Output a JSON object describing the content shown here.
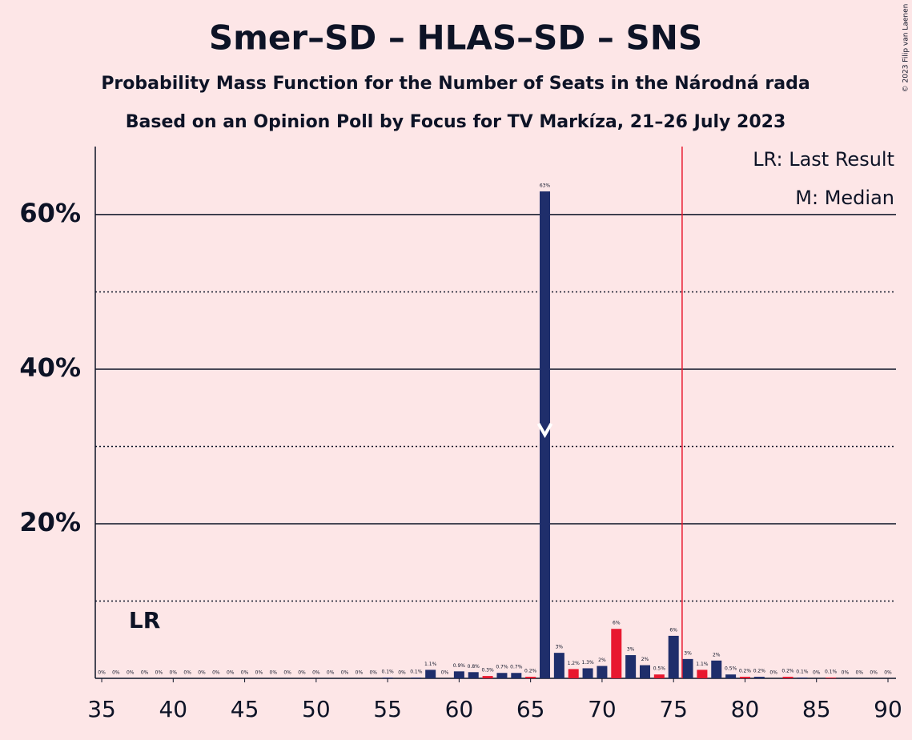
{
  "chart_data": {
    "type": "bar",
    "title": "Smer–SD – HLAS–SD – SNS",
    "subtitle": "Probability Mass Function for the Number of Seats in the Národná rada",
    "subtitle2": "Based on an Opinion Poll by Focus for TV Markíza, 21–26 July 2023",
    "copyright": "© 2023 Filip van Laenen",
    "legend": [
      "LR: Last Result",
      "M: Median"
    ],
    "last_result_label": "LR",
    "x": [
      35,
      36,
      37,
      38,
      39,
      40,
      41,
      42,
      43,
      44,
      45,
      46,
      47,
      48,
      49,
      50,
      51,
      52,
      53,
      54,
      55,
      56,
      57,
      58,
      59,
      60,
      61,
      62,
      63,
      64,
      65,
      66,
      67,
      68,
      69,
      70,
      71,
      72,
      73,
      74,
      75,
      76,
      77,
      78,
      79,
      80,
      81,
      82,
      83,
      84,
      85,
      86,
      87,
      88,
      89,
      90
    ],
    "values": [
      0,
      0,
      0,
      0,
      0,
      0,
      0,
      0,
      0,
      0,
      0,
      0,
      0,
      0,
      0,
      0,
      0,
      0,
      0,
      0,
      0.1,
      0,
      0.1,
      1.1,
      0,
      0.9,
      0.8,
      0.3,
      0.7,
      0.7,
      0.2,
      63,
      3.3,
      1.2,
      1.3,
      1.6,
      6.4,
      3.0,
      1.7,
      0.5,
      5.5,
      2.5,
      1.1,
      2.3,
      0.5,
      0.2,
      0.2,
      0,
      0.2,
      0.1,
      0,
      0.1,
      0,
      0,
      0,
      0
    ],
    "value_labels": [
      "0%",
      "0%",
      "0%",
      "0%",
      "0%",
      "0%",
      "0%",
      "0%",
      "0%",
      "0%",
      "0%",
      "0%",
      "0%",
      "0%",
      "0%",
      "0%",
      "0%",
      "0%",
      "0%",
      "0%",
      "0.1%",
      "0%",
      "0.1%",
      "1.1%",
      "0%",
      "0.9%",
      "0.8%",
      "0.3%",
      "0.7%",
      "0.7%",
      "0.2%",
      "63%",
      "3%",
      "1.2%",
      "1.3%",
      "2%",
      "6%",
      "3%",
      "2%",
      "0.5%",
      "6%",
      "3%",
      "1.1%",
      "2%",
      "0.5%",
      "0.2%",
      "0.2%",
      "0%",
      "0.2%",
      "0.1%",
      "0%",
      "0.1%",
      "0%",
      "0%",
      "0%",
      "0%"
    ],
    "colors": [
      "#1f2e6b",
      "#1f2e6b",
      "#e8182f",
      "#1f2e6b",
      "#1f2e6b",
      "#e8182f",
      "#1f2e6b",
      "#1f2e6b",
      "#e8182f",
      "#1f2e6b",
      "#1f2e6b",
      "#e8182f",
      "#1f2e6b",
      "#1f2e6b",
      "#e8182f",
      "#1f2e6b",
      "#1f2e6b",
      "#e8182f",
      "#1f2e6b",
      "#1f2e6b",
      "#e8182f",
      "#1f2e6b",
      "#1f2e6b",
      "#e8182f"
    ],
    "color_base_seat": 33,
    "xlim": [
      34.55,
      90.56
    ],
    "xticks": [
      35,
      40,
      45,
      50,
      55,
      60,
      65,
      70,
      75,
      80,
      85,
      90
    ],
    "ylim": [
      0,
      68.8
    ],
    "yticks": [
      {
        "value": 20,
        "label": "20%"
      },
      {
        "value": 40,
        "label": "40%"
      },
      {
        "value": 60,
        "label": "60%"
      }
    ],
    "minor_yticks": [
      10,
      30,
      50
    ],
    "last_result": 38,
    "median": 66,
    "majority_line": 75.6
  }
}
